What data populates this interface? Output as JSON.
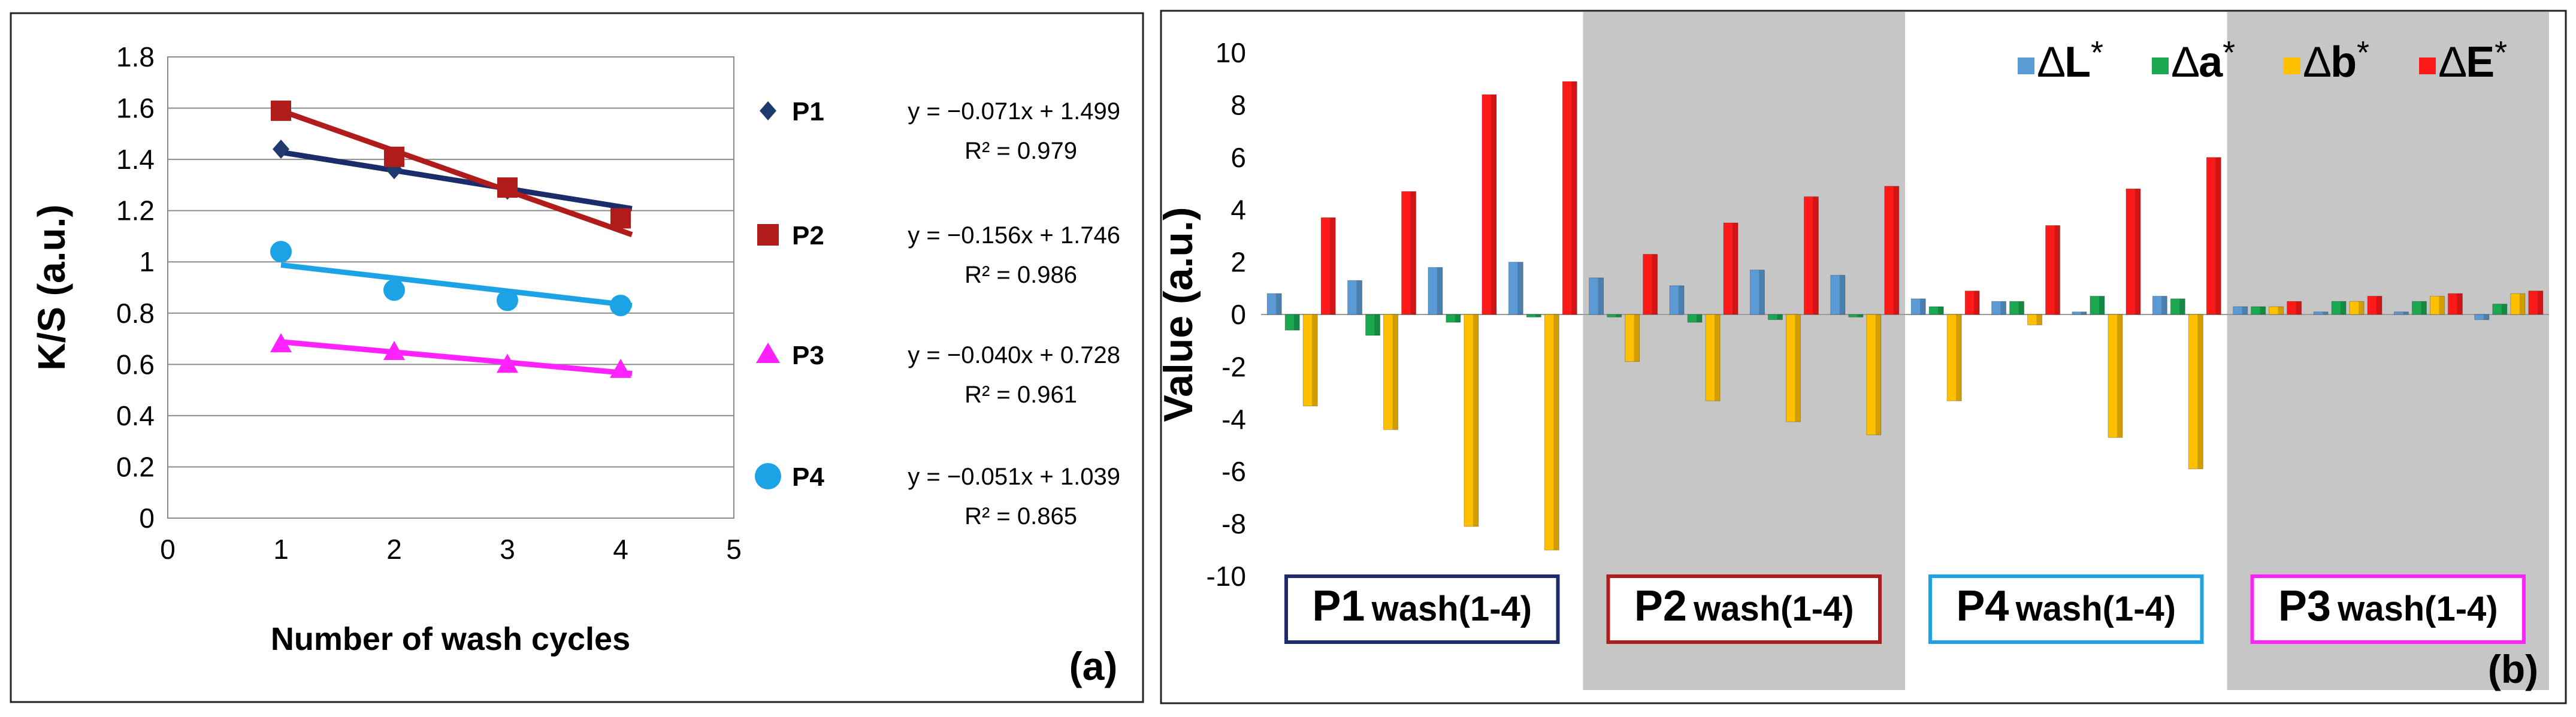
{
  "panel_a": {
    "label": "(a)",
    "chart_data": {
      "type": "scatter",
      "xlabel": "Number of wash cycles",
      "ylabel": "K/S (a.u.)",
      "xlim": [
        0,
        5
      ],
      "ylim": [
        0,
        1.8
      ],
      "x_ticks": [
        "0",
        "1",
        "2",
        "3",
        "4",
        "5"
      ],
      "y_ticks": [
        "0",
        "0.2",
        "0.4",
        "0.6",
        "0.8",
        "1",
        "1.2",
        "1.4",
        "1.6",
        "1.8"
      ],
      "grid": true,
      "series": [
        {
          "name": "P1",
          "marker": "diamond",
          "marker_color": "#1f3a6e",
          "line_color": "#1b2c6b",
          "x": [
            1,
            2,
            3,
            4
          ],
          "y": [
            1.44,
            1.36,
            1.28,
            1.18
          ],
          "trend": {
            "slope": -0.071,
            "intercept": 1.499
          },
          "equation": "y = −0.071x + 1.499",
          "r2": "R² = 0.979"
        },
        {
          "name": "P2",
          "marker": "square",
          "marker_color": "#b01c1c",
          "line_color": "#b01c1c",
          "x": [
            1,
            2,
            3,
            4
          ],
          "y": [
            1.59,
            1.41,
            1.29,
            1.17
          ],
          "trend": {
            "slope": -0.156,
            "intercept": 1.746
          },
          "equation": "y = −0.156x + 1.746",
          "r2": "R² = 0.986"
        },
        {
          "name": "P3",
          "marker": "triangle",
          "marker_color": "#ff22ff",
          "line_color": "#ff22ff",
          "x": [
            1,
            2,
            3,
            4
          ],
          "y": [
            0.68,
            0.65,
            0.6,
            0.58
          ],
          "trend": {
            "slope": -0.04,
            "intercept": 0.728
          },
          "equation": "y = −0.040x + 0.728",
          "r2": "R² = 0.961"
        },
        {
          "name": "P4",
          "marker": "circle",
          "marker_color": "#1ca3e6",
          "line_color": "#1ca3e6",
          "x": [
            1,
            2,
            3,
            4
          ],
          "y": [
            1.04,
            0.89,
            0.85,
            0.83
          ],
          "trend": {
            "slope": -0.051,
            "intercept": 1.039
          },
          "equation": "y = −0.051x + 1.039",
          "r2": "R² = 0.865"
        }
      ]
    }
  },
  "panel_b": {
    "label": "(b)",
    "chart_data": {
      "type": "bar",
      "ylabel": "Value (a.u.)",
      "ylim": [
        -10,
        10
      ],
      "y_ticks": [
        "10",
        "8",
        "6",
        "4",
        "2",
        "0",
        "-2",
        "-4",
        "-6",
        "-8",
        "-10"
      ],
      "legend": [
        {
          "symbol": "∆",
          "letter": "L",
          "star": "*",
          "color": "#5b9bd5"
        },
        {
          "symbol": "∆",
          "letter": "a",
          "star": "*",
          "color": "#1aa850"
        },
        {
          "symbol": "∆",
          "letter": "b",
          "star": "*",
          "color": "#ffc000"
        },
        {
          "symbol": "∆",
          "letter": "E",
          "star": "*",
          "color": "#ff1a1a"
        }
      ],
      "groups": [
        {
          "name": "P1",
          "suffix": "wash(1‑4)",
          "shaded": false,
          "box_color": "#1f2a6b",
          "washes": [
            [
              0.8,
              -0.6,
              -3.5,
              3.7
            ],
            [
              1.3,
              -0.8,
              -4.4,
              4.7
            ],
            [
              1.8,
              -0.3,
              -8.1,
              8.4
            ],
            [
              2.0,
              -0.1,
              -9.0,
              8.9
            ]
          ]
        },
        {
          "name": "P2",
          "suffix": "wash(1‑4)",
          "shaded": true,
          "box_color": "#b01c1c",
          "washes": [
            [
              1.4,
              -0.1,
              -1.8,
              2.3
            ],
            [
              1.1,
              -0.3,
              -3.3,
              3.5
            ],
            [
              1.7,
              -0.2,
              -4.1,
              4.5
            ],
            [
              1.5,
              -0.1,
              -4.6,
              4.9
            ]
          ]
        },
        {
          "name": "P4",
          "suffix": "wash(1‑4)",
          "shaded": false,
          "box_color": "#1ca3e6",
          "washes": [
            [
              0.6,
              0.3,
              -3.3,
              0.9
            ],
            [
              0.5,
              0.5,
              -0.4,
              3.4
            ],
            [
              0.1,
              0.7,
              -4.7,
              4.8
            ],
            [
              0.7,
              0.6,
              -5.9,
              6.0
            ]
          ]
        },
        {
          "name": "P3",
          "suffix": "wash(1‑4)",
          "shaded": true,
          "box_color": "#ff22ff",
          "washes": [
            [
              0.3,
              0.3,
              0.3,
              0.5
            ],
            [
              0.1,
              0.5,
              0.5,
              0.7
            ],
            [
              0.1,
              0.5,
              0.7,
              0.8
            ],
            [
              -0.2,
              0.4,
              0.8,
              0.9
            ]
          ]
        }
      ]
    }
  }
}
